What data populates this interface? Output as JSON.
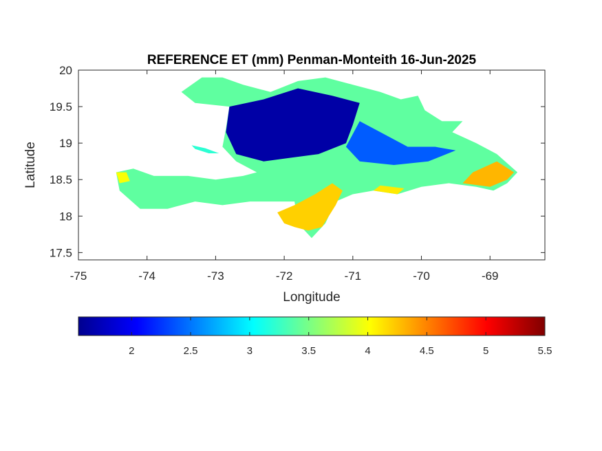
{
  "chart_data": {
    "type": "heatmap",
    "title": "REFERENCE ET (mm) Penman-Monteith 16-Jun-2025",
    "xlabel": "Longitude",
    "ylabel": "Latitude",
    "xlim": [
      -75,
      -68.2
    ],
    "ylim": [
      17.4,
      20
    ],
    "x_ticks": [
      -75,
      -74,
      -73,
      -72,
      -71,
      -70,
      -69
    ],
    "x_tick_labels": [
      "-75",
      "-74",
      "-73",
      "-72",
      "-71",
      "-70",
      "-69"
    ],
    "y_ticks": [
      17.5,
      18,
      18.5,
      19,
      19.5,
      20
    ],
    "y_tick_labels": [
      "17.5",
      "18",
      "18.5",
      "19",
      "19.5",
      "20"
    ],
    "colorbar": {
      "colormap": "jet",
      "range": [
        1.55,
        5.5
      ],
      "ticks": [
        2,
        2.5,
        3,
        3.5,
        4,
        4.5,
        5,
        5.5
      ],
      "tick_labels": [
        "2",
        "2.5",
        "3",
        "3.5",
        "4",
        "4.5",
        "5",
        "5.5"
      ],
      "placement": "bottom"
    },
    "grid": false,
    "regions": [
      {
        "name": "",
        "value": 3.4,
        "outline": [
          [
            -73.5,
            19.7
          ],
          [
            -73.2,
            19.9
          ],
          [
            -72.9,
            19.9
          ],
          [
            -72.6,
            19.8
          ],
          [
            -72.2,
            19.7
          ],
          [
            -71.8,
            19.85
          ],
          [
            -71.4,
            19.9
          ],
          [
            -71.0,
            19.8
          ],
          [
            -70.6,
            19.7
          ],
          [
            -70.3,
            19.6
          ],
          [
            -70.05,
            19.65
          ],
          [
            -69.95,
            19.45
          ],
          [
            -69.7,
            19.3
          ],
          [
            -69.4,
            19.3
          ],
          [
            -69.55,
            19.15
          ],
          [
            -69.2,
            19.0
          ],
          [
            -68.9,
            18.85
          ],
          [
            -68.6,
            18.6
          ],
          [
            -68.75,
            18.45
          ],
          [
            -68.95,
            18.35
          ],
          [
            -69.2,
            18.4
          ],
          [
            -69.6,
            18.45
          ],
          [
            -70.0,
            18.4
          ],
          [
            -70.35,
            18.3
          ],
          [
            -70.7,
            18.35
          ],
          [
            -71.0,
            18.3
          ],
          [
            -71.25,
            18.2
          ],
          [
            -71.4,
            17.9
          ],
          [
            -71.6,
            17.7
          ],
          [
            -71.8,
            17.9
          ],
          [
            -71.85,
            18.2
          ],
          [
            -72.1,
            18.2
          ],
          [
            -72.5,
            18.2
          ],
          [
            -72.9,
            18.15
          ],
          [
            -73.3,
            18.2
          ],
          [
            -73.7,
            18.1
          ],
          [
            -74.1,
            18.1
          ],
          [
            -74.4,
            18.35
          ],
          [
            -74.45,
            18.6
          ],
          [
            -74.2,
            18.65
          ],
          [
            -73.9,
            18.55
          ],
          [
            -73.4,
            18.55
          ],
          [
            -73.0,
            18.5
          ],
          [
            -72.6,
            18.55
          ],
          [
            -72.4,
            18.6
          ],
          [
            -72.7,
            18.75
          ],
          [
            -72.9,
            18.95
          ],
          [
            -72.85,
            19.2
          ],
          [
            -72.8,
            19.5
          ],
          [
            -73.3,
            19.55
          ],
          [
            -73.5,
            19.7
          ]
        ]
      },
      {
        "name": "",
        "value": 3.2,
        "outline": [
          [
            -73.35,
            18.97
          ],
          [
            -73.15,
            18.93
          ],
          [
            -72.95,
            18.86
          ],
          [
            -73.1,
            18.86
          ],
          [
            -73.3,
            18.92
          ]
        ]
      },
      {
        "name": "",
        "value": 1.7,
        "outline": [
          [
            -72.8,
            19.5
          ],
          [
            -72.3,
            19.6
          ],
          [
            -71.8,
            19.75
          ],
          [
            -71.3,
            19.65
          ],
          [
            -70.9,
            19.55
          ],
          [
            -71.0,
            19.25
          ],
          [
            -71.1,
            19.0
          ],
          [
            -71.5,
            18.85
          ],
          [
            -71.9,
            18.8
          ],
          [
            -72.3,
            18.75
          ],
          [
            -72.7,
            18.85
          ],
          [
            -72.85,
            19.15
          ]
        ]
      },
      {
        "name": "",
        "value": 2.4,
        "outline": [
          [
            -70.9,
            19.3
          ],
          [
            -70.5,
            19.1
          ],
          [
            -70.2,
            18.95
          ],
          [
            -69.8,
            18.95
          ],
          [
            -69.5,
            18.9
          ],
          [
            -69.9,
            18.75
          ],
          [
            -70.4,
            18.7
          ],
          [
            -70.9,
            18.75
          ],
          [
            -71.1,
            18.95
          ]
        ]
      },
      {
        "name": "",
        "value": 4.2,
        "outline": [
          [
            -72.1,
            18.05
          ],
          [
            -71.85,
            18.15
          ],
          [
            -71.55,
            18.3
          ],
          [
            -71.3,
            18.45
          ],
          [
            -71.15,
            18.35
          ],
          [
            -71.25,
            18.15
          ],
          [
            -71.45,
            17.85
          ],
          [
            -71.65,
            17.8
          ],
          [
            -71.85,
            17.85
          ],
          [
            -72.0,
            17.9
          ]
        ]
      },
      {
        "name": "",
        "value": 4.3,
        "outline": [
          [
            -69.4,
            18.45
          ],
          [
            -69.0,
            18.4
          ],
          [
            -68.75,
            18.5
          ],
          [
            -68.65,
            18.6
          ],
          [
            -68.9,
            18.75
          ],
          [
            -69.25,
            18.6
          ]
        ]
      },
      {
        "name": "",
        "value": 4.1,
        "outline": [
          [
            -70.7,
            18.35
          ],
          [
            -70.35,
            18.3
          ],
          [
            -70.25,
            18.38
          ],
          [
            -70.6,
            18.42
          ]
        ]
      },
      {
        "name": "",
        "value": 4.0,
        "outline": [
          [
            -74.45,
            18.6
          ],
          [
            -74.3,
            18.6
          ],
          [
            -74.25,
            18.48
          ],
          [
            -74.4,
            18.45
          ]
        ]
      }
    ]
  }
}
